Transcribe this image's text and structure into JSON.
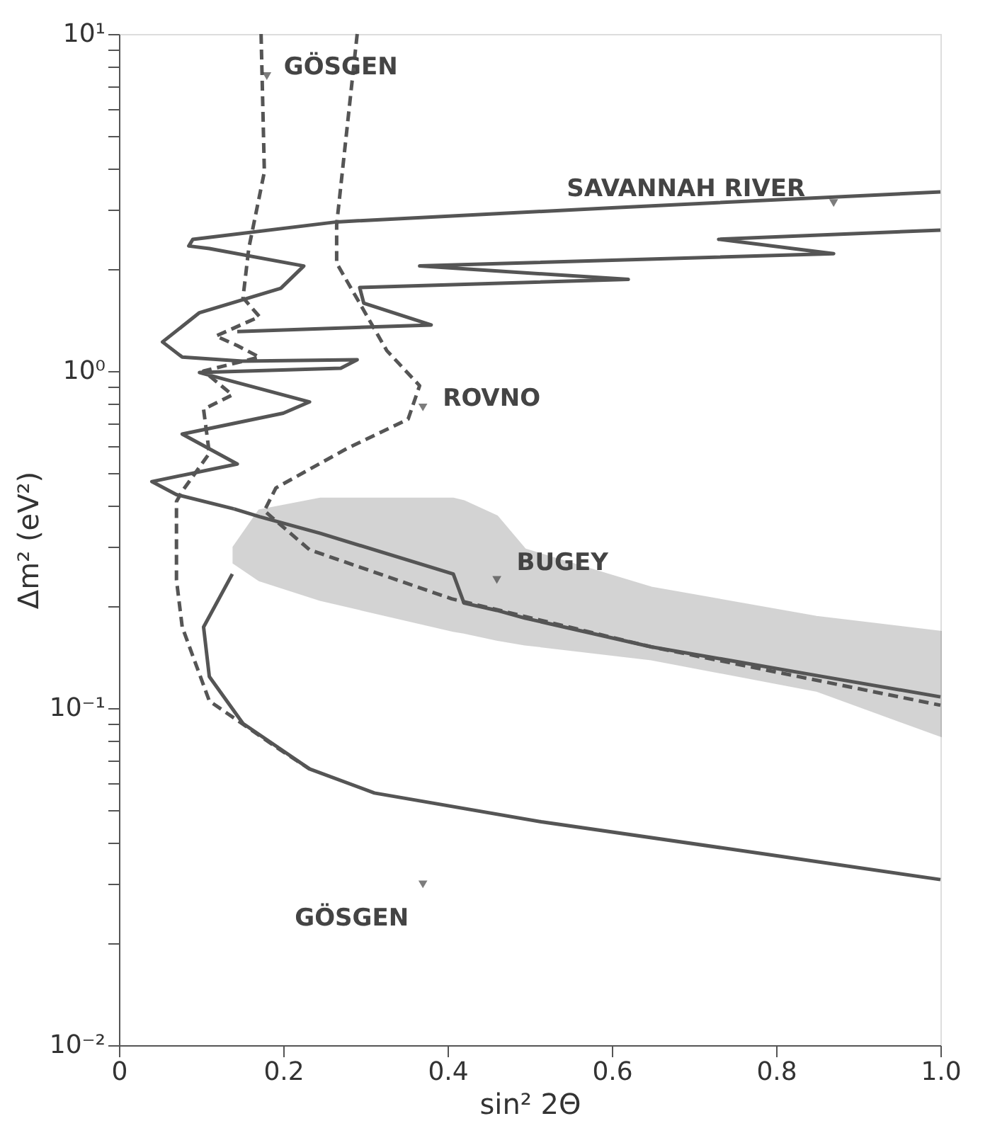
{
  "chart_data": {
    "type": "line",
    "xlabel": "sin² 2Θ",
    "ylabel": "Δm² (eV²)",
    "xlim": [
      0,
      1
    ],
    "xticks": [
      0,
      0.2,
      0.4,
      0.6,
      0.8,
      {
        "value": 1,
        "label": "1.0"
      }
    ],
    "ylim": [
      0.01,
      10
    ],
    "log": true,
    "yticks": [
      {
        "value": 0.01,
        "label": "10⁻²"
      },
      {
        "value": 0.02,
        "label": null
      },
      {
        "value": 0.03,
        "label": null
      },
      {
        "value": 0.04,
        "label": null
      },
      {
        "value": 0.05,
        "label": null
      },
      {
        "value": 0.06,
        "label": null
      },
      {
        "value": 0.07,
        "label": null
      },
      {
        "value": 0.08,
        "label": null
      },
      {
        "value": 0.09,
        "label": null
      },
      {
        "value": 0.1,
        "label": "10⁻¹"
      },
      {
        "value": 0.2,
        "label": null
      },
      {
        "value": 0.3,
        "label": null
      },
      {
        "value": 0.4,
        "label": null
      },
      {
        "value": 0.5,
        "label": null
      },
      {
        "value": 0.6,
        "label": null
      },
      {
        "value": 0.7,
        "label": null
      },
      {
        "value": 0.8,
        "label": null
      },
      {
        "value": 0.9,
        "label": null
      },
      {
        "value": 1,
        "label": "10⁰"
      },
      {
        "value": 2,
        "label": null
      },
      {
        "value": 3,
        "label": null
      },
      {
        "value": 4,
        "label": null
      },
      {
        "value": 5,
        "label": null
      },
      {
        "value": 6,
        "label": null
      },
      {
        "value": 7,
        "label": null
      },
      {
        "value": 8,
        "label": null
      },
      {
        "value": 9,
        "label": null
      },
      {
        "value": 10,
        "label": "10¹"
      }
    ],
    "grid": false,
    "marker": "none",
    "series": [
      {
        "type": "line",
        "color": "#555555",
        "line_style": "solid",
        "x": [
          0.14,
          0.171,
          0.245,
          0.407,
          0.42,
          0.46,
          0.494,
          0.648,
          0.849,
          1.0
        ],
        "values": [
          0.39,
          0.37,
          0.33,
          0.25,
          0.205,
          0.195,
          0.185,
          0.152,
          0.125,
          0.108
        ],
        "lower": [
          0.27,
          0.24,
          0.21,
          0.17,
          0.168,
          0.16,
          0.155,
          0.14,
          0.113,
          0.083
        ],
        "upper": [
          0.3,
          0.385,
          0.417,
          0.417,
          0.41,
          0.37,
          0.295,
          0.227,
          0.186,
          0.168
        ]
      },
      {
        "color": "#555555",
        "line_style": "solid",
        "x": [
          1.0,
          0.6,
          0.265,
          0.09,
          0.085,
          0.11,
          0.225,
          0.197,
          0.098,
          0.053,
          0.077,
          0.15,
          0.29,
          0.27,
          0.098,
          0.232,
          0.2,
          0.077,
          0.144,
          0.04,
          0.07,
          0.14,
          null,
          1.0,
          0.73,
          0.87,
          0.366,
          0.62,
          0.293,
          0.298,
          0.38,
          0.144
        ],
        "values": [
          3.4,
          3.05,
          2.77,
          2.46,
          2.35,
          2.31,
          2.05,
          1.76,
          1.49,
          1.22,
          1.1,
          1.07,
          1.08,
          1.02,
          0.99,
          0.81,
          0.75,
          0.65,
          0.53,
          0.47,
          0.43,
          0.39,
          null,
          2.62,
          2.46,
          2.23,
          2.05,
          1.87,
          1.77,
          1.59,
          1.37,
          1.31
        ]
      },
      {
        "color": "#555555",
        "line_style": "dashed",
        "x": [
          0.29,
          0.265,
          0.265,
          0.293,
          0.326,
          0.366,
          0.352,
          0.278,
          0.191,
          0.177,
          0.232,
          0.405,
          0.648,
          1.0
        ],
        "values": [
          10,
          2.72,
          2.09,
          1.59,
          1.15,
          0.905,
          0.72,
          0.59,
          0.45,
          0.385,
          0.295,
          0.211,
          0.152,
          0.102
        ]
      },
      {
        "color": "#555555",
        "line_style": "dashed",
        "x": [
          0.173,
          0.177,
          0.158,
          0.151,
          0.171,
          0.118,
          0.144,
          0.171,
          0.103,
          0.138,
          0.103,
          0.11,
          0.077,
          0.07,
          0.07,
          0.077,
          0.11,
          0.197,
          0.232
        ],
        "values": [
          10,
          3.9,
          2.31,
          1.65,
          1.45,
          1.27,
          1.19,
          1.1,
          1.0,
          0.85,
          0.77,
          0.57,
          0.44,
          0.41,
          0.24,
          0.174,
          0.105,
          0.075,
          0.066
        ]
      },
      {
        "color": "#555555",
        "line_style": "solid",
        "x": [
          0.138,
          0.103,
          0.11,
          0.151,
          0.232,
          0.311,
          0.514,
          0.783,
          1.0
        ],
        "values": [
          0.25,
          0.174,
          0.124,
          0.09,
          0.066,
          0.056,
          0.046,
          0.037,
          0.031
        ]
      }
    ],
    "annotations": [
      {
        "text": "GÖSGEN",
        "x": 0.18,
        "y": 7.5
      },
      {
        "text": "SAVANNAH RIVER",
        "x": 0.87,
        "y": 3.15
      },
      {
        "text": "ROVNO",
        "x": 0.37,
        "y": 0.78
      },
      {
        "text": "BUGEY",
        "x": 0.46,
        "y": 0.24
      },
      {
        "text": "GÖSGEN",
        "x": 0.37,
        "y": 0.03
      }
    ]
  }
}
